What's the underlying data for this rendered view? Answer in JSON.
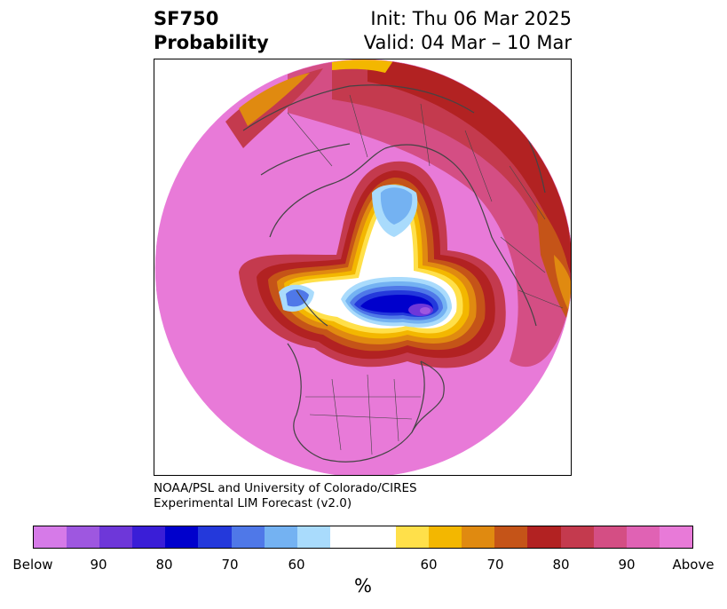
{
  "title": {
    "variable": "SF750",
    "product": "Probability",
    "init": "Init: Thu 06 Mar 2025",
    "valid": "Valid: 04 Mar – 10 Mar"
  },
  "credit": {
    "line1": "NOAA/PSL and University of Colorado/CIRES",
    "line2": "Experimental LIM Forecast (v2.0)"
  },
  "colorbar": {
    "colors": [
      "#d67ae8",
      "#9e57e0",
      "#6e37d9",
      "#3a1ed7",
      "#0000cc",
      "#2439db",
      "#4f78e8",
      "#74b2f2",
      "#a9dbfc",
      "#ffffff",
      "#ffe04a",
      "#f3b700",
      "#e08a10",
      "#c55418",
      "#b22222",
      "#c43a4e",
      "#d44e84",
      "#e062b4",
      "#e87ad8"
    ],
    "tick_labels": [
      "Below",
      "90",
      "80",
      "70",
      "60",
      "60",
      "70",
      "80",
      "90",
      "Above"
    ],
    "unit_label": "%"
  }
}
